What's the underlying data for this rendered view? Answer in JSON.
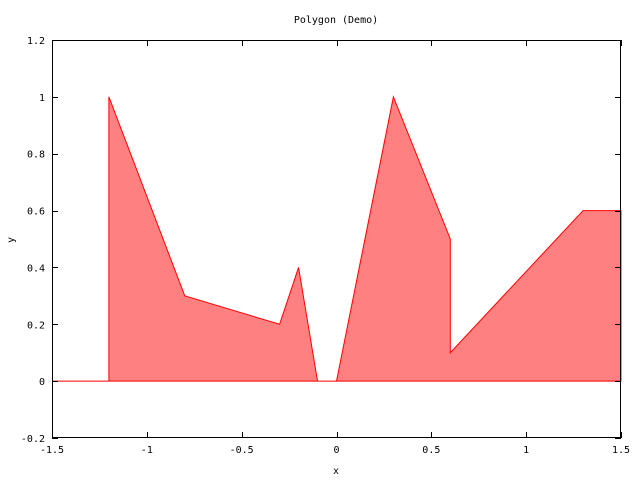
{
  "chart_data": {
    "type": "area",
    "title": "Polygon (Demo)",
    "xlabel": "x",
    "ylabel": "y",
    "xlim": [
      -1.5,
      1.5
    ],
    "ylim": [
      -0.2,
      1.2
    ],
    "x_ticks": [
      -1.5,
      -1,
      -0.5,
      0,
      0.5,
      1,
      1.5
    ],
    "x_tick_labels": [
      "-1.5",
      "-1",
      "-0.5",
      "0",
      "0.5",
      "1",
      "1.5"
    ],
    "y_ticks": [
      -0.2,
      0,
      0.2,
      0.4,
      0.6,
      0.8,
      1,
      1.2
    ],
    "y_tick_labels": [
      "-0.2",
      "0",
      "0.2",
      "0.4",
      "0.6",
      "0.8",
      "1",
      "1.2"
    ],
    "grid": false,
    "series": [
      {
        "fill_color": "#ff8080",
        "line_color": "#ff0000",
        "x": [
          -1.5,
          -1.2,
          -1.2,
          -0.8,
          -0.3,
          -0.2,
          -0.1,
          0,
          0.3,
          0.6,
          0.6,
          1.3,
          1.5,
          1.5
        ],
        "y": [
          0,
          0,
          1,
          0.3,
          0.2,
          0.4,
          0,
          0,
          1,
          0.5,
          0.1,
          0.6,
          0.6,
          0
        ]
      }
    ]
  }
}
